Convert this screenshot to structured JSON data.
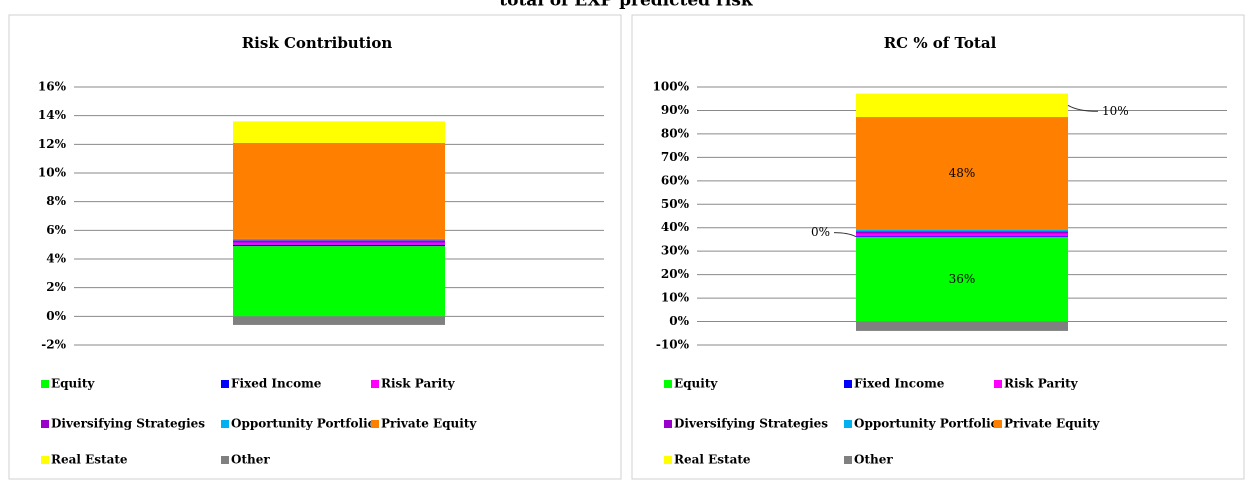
{
  "title": "total of EXP predicted risk",
  "chart_data": [
    {
      "type": "stacked-bar",
      "title": "Risk Contribution",
      "categories": [
        null
      ],
      "ylim": [
        -2,
        16
      ],
      "yticks": [
        {
          "value": -2,
          "label": "-2%"
        },
        {
          "value": 0,
          "label": "0%"
        },
        {
          "value": 2,
          "label": "2%"
        },
        {
          "value": 4,
          "label": "4%"
        },
        {
          "value": 6,
          "label": "6%"
        },
        {
          "value": 8,
          "label": "8%"
        },
        {
          "value": 10,
          "label": "10%"
        },
        {
          "value": 12,
          "label": "12%"
        },
        {
          "value": 14,
          "label": "14%"
        },
        {
          "value": 16,
          "label": "16%"
        }
      ],
      "grid": true,
      "series": [
        {
          "name": "Equity",
          "color": "#00ff00",
          "values": [
            4.9
          ]
        },
        {
          "name": "Fixed Income",
          "color": "#0000ff",
          "values": [
            0.1
          ]
        },
        {
          "name": "Risk Parity",
          "color": "#ff00ff",
          "values": [
            0.15
          ]
        },
        {
          "name": "Diversifying Strategies",
          "color": "#9900cc",
          "values": [
            0.15
          ]
        },
        {
          "name": "Opportunity Portfolio",
          "color": "#00b0f0",
          "values": [
            0.1
          ]
        },
        {
          "name": "Private Equity",
          "color": "#ff8000",
          "values": [
            6.7
          ]
        },
        {
          "name": "Real Estate",
          "color": "#ffff00",
          "values": [
            1.5
          ]
        },
        {
          "name": "Other",
          "color": "#808080",
          "values": [
            -0.6
          ]
        }
      ]
    },
    {
      "type": "stacked-bar",
      "title": "RC % of Total",
      "categories": [
        null
      ],
      "ylim": [
        -10,
        100
      ],
      "yticks": [
        {
          "value": -10,
          "label": "-10%"
        },
        {
          "value": 0,
          "label": "0%"
        },
        {
          "value": 10,
          "label": "10%"
        },
        {
          "value": 20,
          "label": "20%"
        },
        {
          "value": 30,
          "label": "30%"
        },
        {
          "value": 40,
          "label": "40%"
        },
        {
          "value": 50,
          "label": "50%"
        },
        {
          "value": 60,
          "label": "60%"
        },
        {
          "value": 70,
          "label": "70%"
        },
        {
          "value": 80,
          "label": "80%"
        },
        {
          "value": 90,
          "label": "90%"
        },
        {
          "value": 100,
          "label": "100%"
        }
      ],
      "grid": true,
      "series": [
        {
          "name": "Equity",
          "color": "#00ff00",
          "values": [
            36
          ],
          "value_labels": [
            "36%"
          ]
        },
        {
          "name": "Fixed Income",
          "color": "#0000ff",
          "values": [
            0.4
          ],
          "value_labels": [
            "0%"
          ]
        },
        {
          "name": "Risk Parity",
          "color": "#ff00ff",
          "values": [
            1
          ]
        },
        {
          "name": "Diversifying Strategies",
          "color": "#9900cc",
          "values": [
            1
          ]
        },
        {
          "name": "Opportunity Portfolio",
          "color": "#00b0f0",
          "values": [
            0.8
          ]
        },
        {
          "name": "Private Equity",
          "color": "#ff8000",
          "values": [
            48
          ],
          "value_labels": [
            "48%"
          ]
        },
        {
          "name": "Real Estate",
          "color": "#ffff00",
          "values": [
            10
          ],
          "value_labels": [
            "10%"
          ]
        },
        {
          "name": "Other",
          "color": "#808080",
          "values": [
            -4
          ]
        }
      ]
    }
  ]
}
